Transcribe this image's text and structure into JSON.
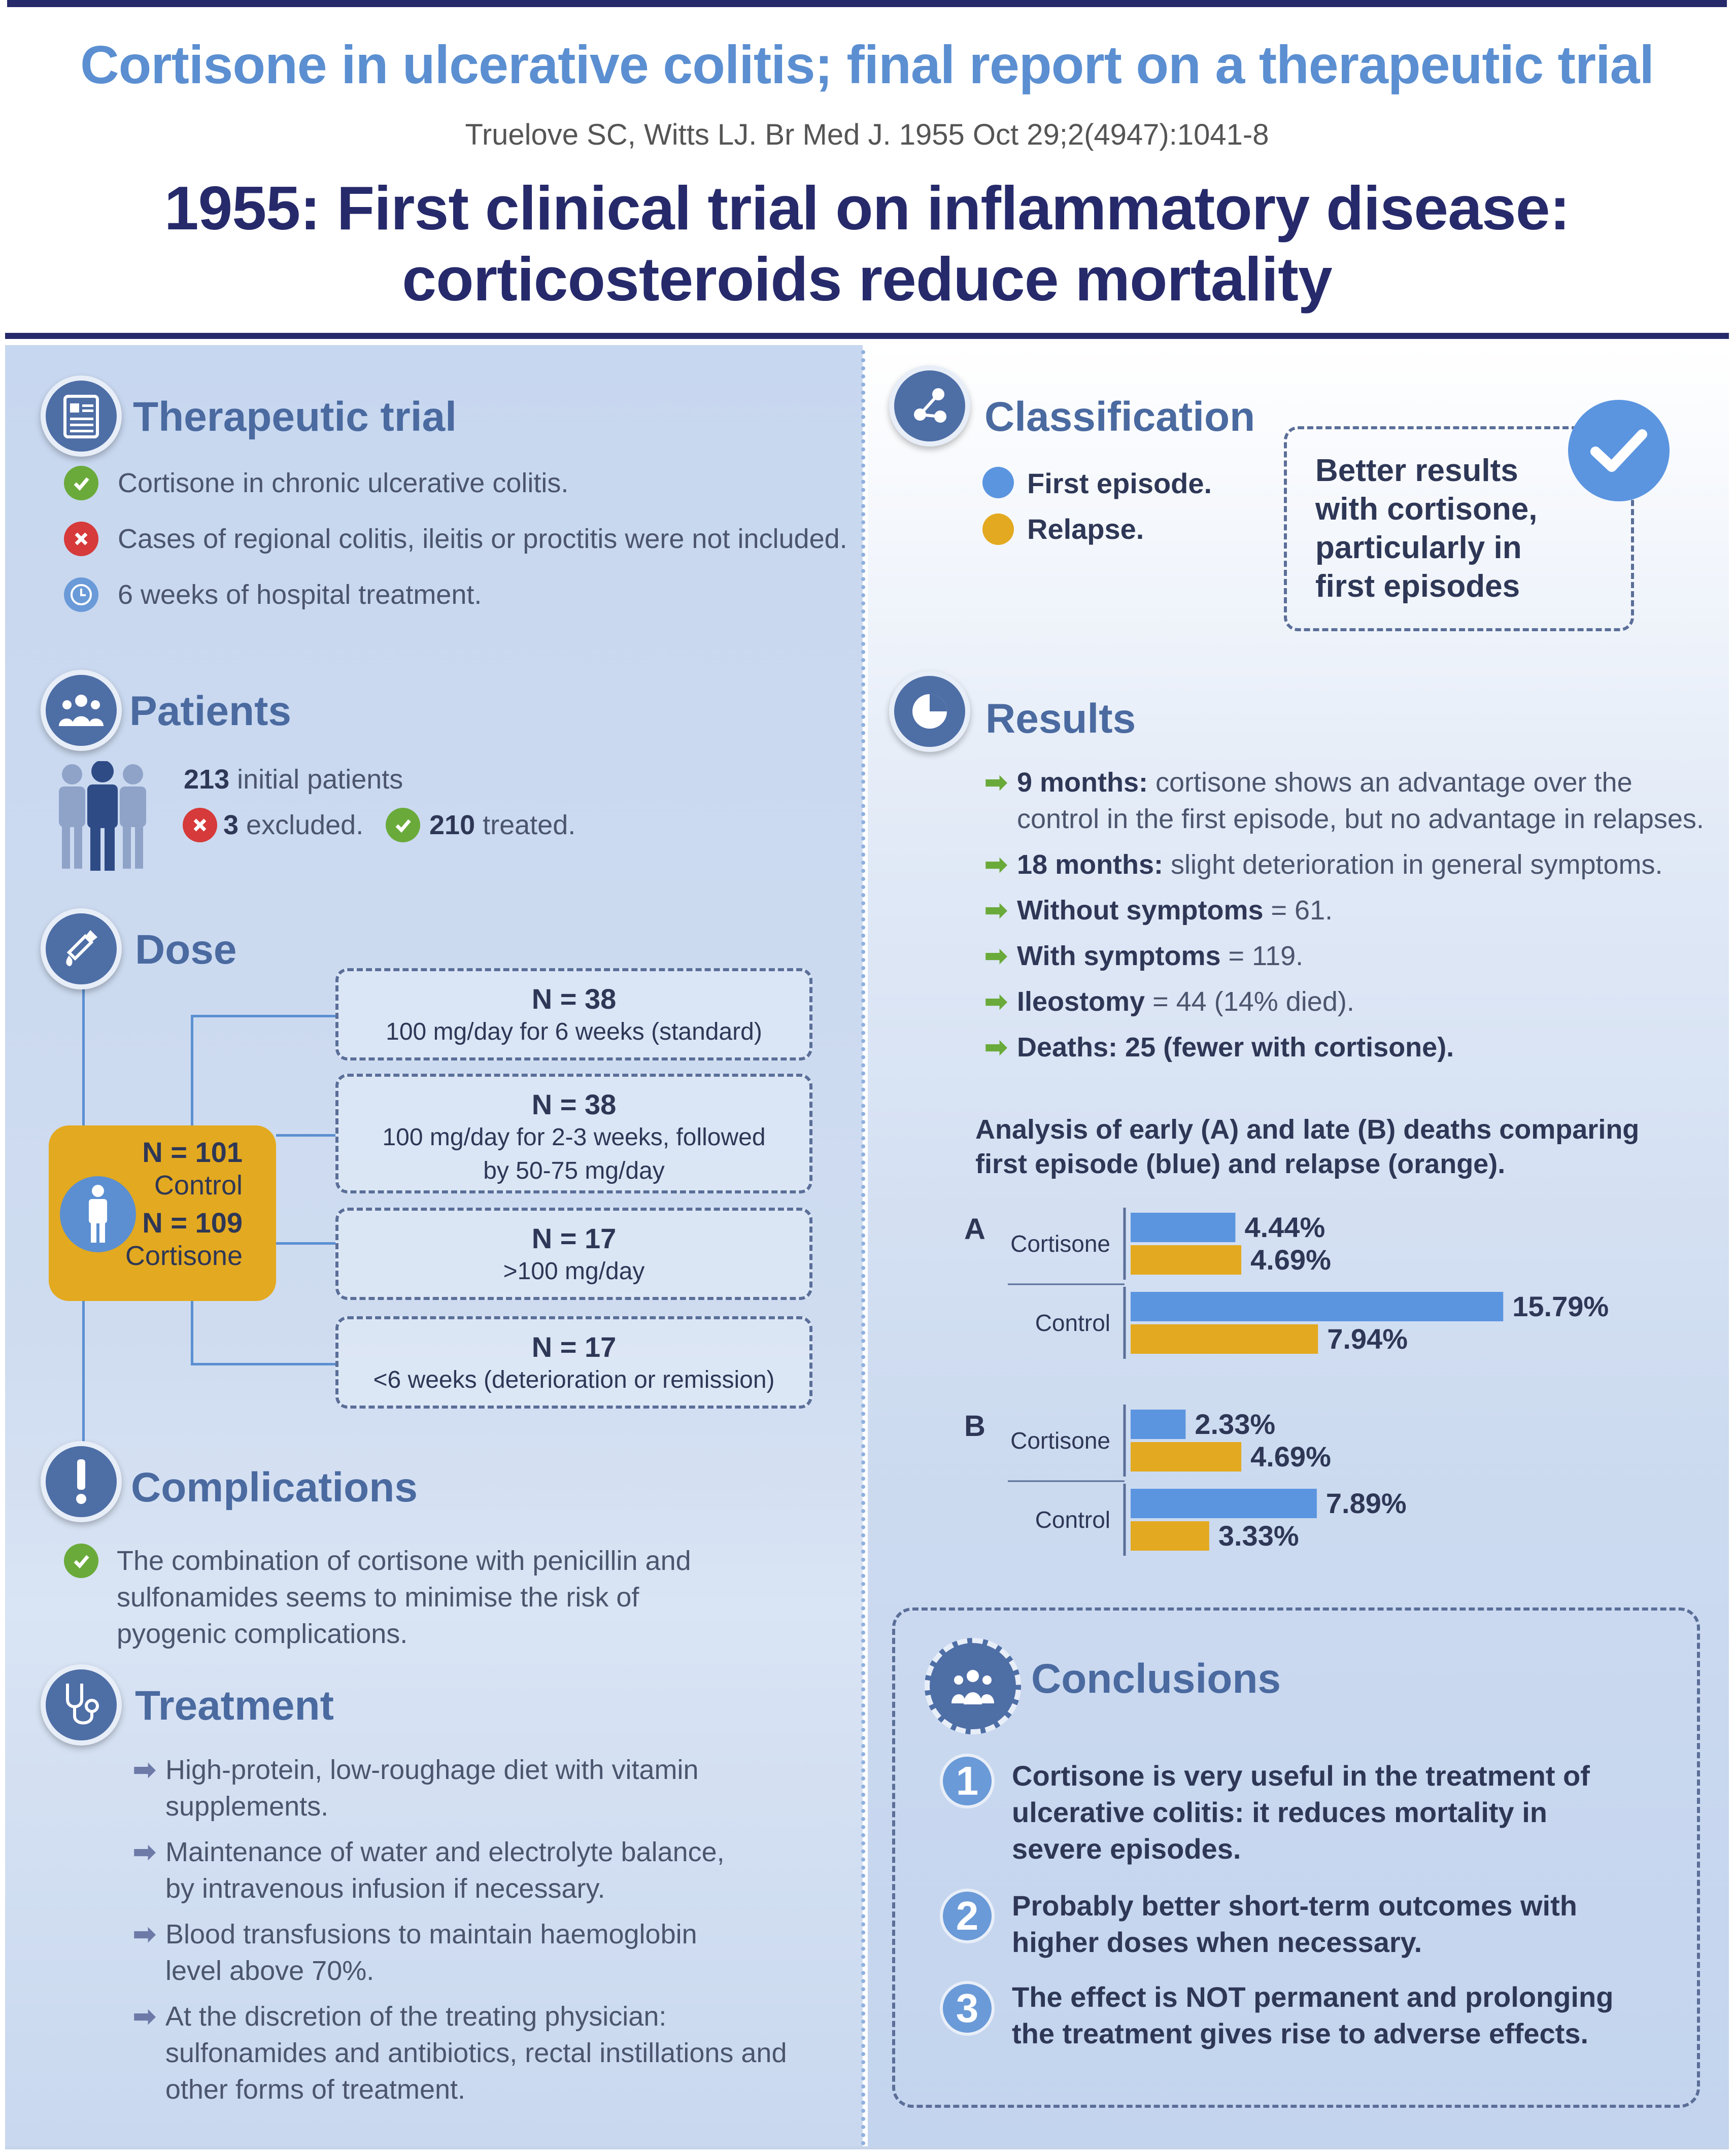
{
  "header": {
    "title": "Cortisone in ulcerative colitis; final report on a therapeutic trial",
    "citation": "Truelove SC, Witts LJ. Br Med J. 1955 Oct 29;2(4947):1041-8",
    "headline_line1": "1955: First clinical trial on inflammatory disease:",
    "headline_line2": "corticosteroids reduce mortality"
  },
  "therapeutic_trial": {
    "title": "Therapeutic trial",
    "items": [
      "Cortisone in chronic ulcerative colitis.",
      "Cases of regional colitis, ileitis or proctitis were not included.",
      "6 weeks of hospital treatment."
    ]
  },
  "patients": {
    "title": "Patients",
    "initial_count": "213",
    "initial_label": " initial patients",
    "excluded_count": "3",
    "excluded_label": " excluded.",
    "treated_count": "210",
    "treated_label": " treated."
  },
  "dose": {
    "title": "Dose",
    "groups": {
      "control_n": "N = 101",
      "control_label": "Control",
      "cortisone_n": "N = 109",
      "cortisone_label": "Cortisone"
    },
    "boxes": [
      {
        "n": "N = 38",
        "text": "100 mg/day for 6 weeks (standard)"
      },
      {
        "n": "N = 38",
        "text": "100 mg/day for 2-3 weeks, followed by 50-75 mg/day"
      },
      {
        "n": "N = 17",
        "text": ">100 mg/day"
      },
      {
        "n": "N = 17",
        "text": "<6 weeks (deterioration or remission)"
      }
    ]
  },
  "complications": {
    "title": "Complications",
    "text": "The combination of cortisone with penicillin and sulfonamides seems to minimise the risk of pyogenic complications."
  },
  "treatment": {
    "title": "Treatment",
    "items": [
      "High-protein, low-roughage diet with vitamin supplements.",
      "Maintenance of water and electrolyte balance, by intravenous infusion if necessary.",
      "Blood transfusions to maintain haemoglobin level above 70%.",
      "At the discretion of the treating physician: sulfonamides and antibiotics, rectal instillations and other forms of treatment."
    ]
  },
  "classification": {
    "title": "Classification",
    "first_episode": "First episode.",
    "relapse": "Relapse.",
    "note": "Better results with cortisone, particularly in first episodes",
    "colors": {
      "first_episode": "#5b95e0",
      "relapse": "#e3a920"
    }
  },
  "results": {
    "title": "Results",
    "items": [
      {
        "bold": "9 months:",
        "rest": " cortisone shows an advantage over the control in the first episode, but no advantage in relapses."
      },
      {
        "bold": "18 months:",
        "rest": " slight deterioration in general symptoms."
      },
      {
        "bold": "Without symptoms",
        "rest": " = 61."
      },
      {
        "bold": "With symptoms",
        "rest": " = 119."
      },
      {
        "bold": "Ileostomy",
        "rest": " = 44 (14% died)."
      },
      {
        "bold": "Deaths:",
        "rest": " 25 (fewer with cortisone)."
      }
    ]
  },
  "chart_data": {
    "type": "bar",
    "title": "Analysis of early (A) and late (B) deaths comparing first episode (blue) and relapse (orange).",
    "groups": [
      {
        "label": "A",
        "categories": [
          "Cortisone",
          "Control"
        ],
        "series": [
          {
            "name": "first episode",
            "values": [
              4.44,
              15.79
            ]
          },
          {
            "name": "relapse",
            "values": [
              4.69,
              7.94
            ]
          }
        ]
      },
      {
        "label": "B",
        "categories": [
          "Cortisone",
          "Control"
        ],
        "series": [
          {
            "name": "first episode",
            "values": [
              2.33,
              7.89
            ]
          },
          {
            "name": "relapse",
            "values": [
              4.69,
              3.33
            ]
          }
        ]
      }
    ],
    "value_labels": {
      "A": [
        [
          "4.44%",
          "4.69%"
        ],
        [
          "15.79%",
          "7.94%"
        ]
      ],
      "B": [
        [
          "2.33%",
          "4.69%"
        ],
        [
          "7.89%",
          "3.33%"
        ]
      ]
    },
    "orientation": "horizontal",
    "xlim": [
      0,
      16
    ],
    "colors": {
      "first episode": "#5b95e0",
      "relapse": "#e3a920"
    }
  },
  "conclusions": {
    "title": "Conclusions",
    "items": [
      {
        "num": "1",
        "text": "Cortisone is very useful in the treatment of ulcerative colitis: it reduces mortality in severe episodes."
      },
      {
        "num": "2",
        "text": "Probably better short-term outcomes with higher doses when necessary."
      },
      {
        "num": "3",
        "text": "The effect is NOT permanent and prolonging the treatment gives rise to adverse effects."
      }
    ]
  }
}
